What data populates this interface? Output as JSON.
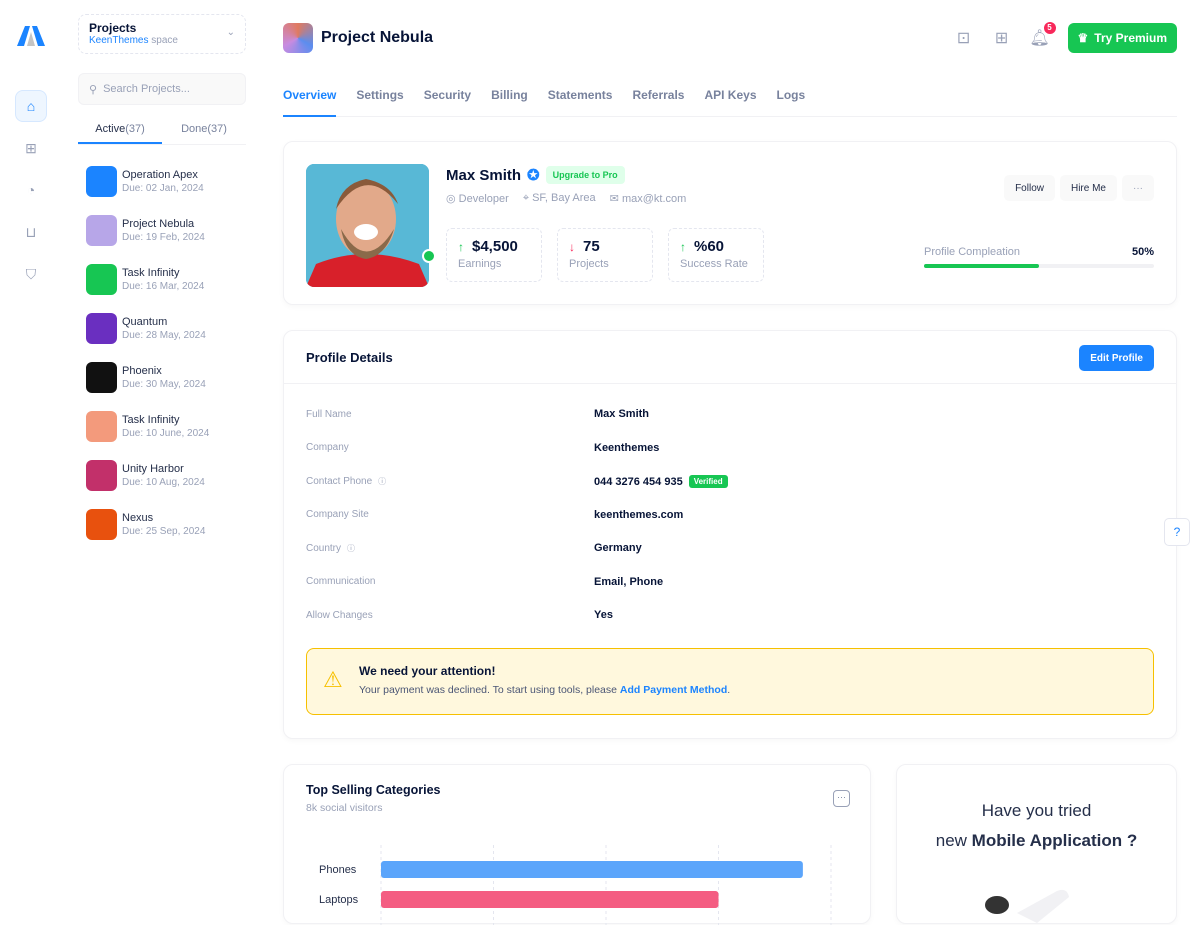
{
  "sidebar": {
    "project_selector": {
      "title": "Projects",
      "space_name": "KeenThemes",
      "space_suffix": "space"
    },
    "search_placeholder": "Search Projects...",
    "tabs": [
      {
        "label": "Active",
        "count": "(37)"
      },
      {
        "label": "Done",
        "count": "(37)"
      }
    ],
    "projects": [
      {
        "name": "Operation Apex",
        "due": "Due: 02 Jan, 2024",
        "color": "#1b84ff"
      },
      {
        "name": "Project Nebula",
        "due": "Due: 19 Feb, 2024",
        "color": "#b7a6e8"
      },
      {
        "name": "Task Infinity",
        "due": "Due: 16 Mar, 2024",
        "color": "#17c653"
      },
      {
        "name": "Quantum",
        "due": "Due: 28 May, 2024",
        "color": "#6a2fc0"
      },
      {
        "name": "Phoenix",
        "due": "Due: 30 May, 2024",
        "color": "#111111"
      },
      {
        "name": "Task Infinity",
        "due": "Due: 10 June, 2024",
        "color": "#f39a7c"
      },
      {
        "name": "Unity Harbor",
        "due": "Due: 10 Aug, 2024",
        "color": "#c2306a"
      },
      {
        "name": "Nexus",
        "due": "Due: 25 Sep, 2024",
        "color": "#e8510e"
      }
    ]
  },
  "header": {
    "title": "Project Nebula",
    "notification_count": "5",
    "premium_label": "Try Premium"
  },
  "nav_tabs": [
    "Overview",
    "Settings",
    "Security",
    "Billing",
    "Statements",
    "Referrals",
    "API Keys",
    "Logs"
  ],
  "profile": {
    "name": "Max Smith",
    "upgrade_label": "Upgrade to Pro",
    "role": "Developer",
    "location": "SF, Bay Area",
    "email": "max@kt.com",
    "stats": [
      {
        "value": "$4,500",
        "label": "Earnings",
        "trend": "up"
      },
      {
        "value": "75",
        "label": "Projects",
        "trend": "down"
      },
      {
        "value": "%60",
        "label": "Success Rate",
        "trend": "up"
      }
    ],
    "follow_label": "Follow",
    "hire_label": "Hire Me",
    "more_label": "···",
    "completion_label": "Profile Compleation",
    "completion_value": "50%",
    "completion_fraction": 0.5
  },
  "details": {
    "title": "Profile Details",
    "edit_label": "Edit Profile",
    "rows": [
      {
        "key": "Full Name",
        "value": "Max Smith"
      },
      {
        "key": "Company",
        "value": "Keenthemes"
      },
      {
        "key": "Contact Phone",
        "value": "044 3276 454 935",
        "badge": "Verified"
      },
      {
        "key": "Company Site",
        "value": "keenthemes.com"
      },
      {
        "key": "Country",
        "value": "Germany"
      },
      {
        "key": "Communication",
        "value": "Email, Phone"
      },
      {
        "key": "Allow Changes",
        "value": "Yes"
      }
    ],
    "alert": {
      "title": "We need your attention!",
      "message": "Your payment was declined. To start using tools, please",
      "link": "Add Payment Method",
      "end": "."
    }
  },
  "chart_data": {
    "type": "bar",
    "orientation": "horizontal",
    "title": "Top Selling Categories",
    "subtitle": "8k social visitors",
    "categories": [
      "Phones",
      "Laptops"
    ],
    "values": [
      37.5,
      30
    ],
    "xlim": [
      0,
      40
    ],
    "grid": true,
    "colors": [
      "#5ba5fb",
      "#f45d82"
    ]
  },
  "promo": {
    "line1": "Have you tried",
    "line2_prefix": "new",
    "line2_bold": "Mobile Application ?"
  }
}
